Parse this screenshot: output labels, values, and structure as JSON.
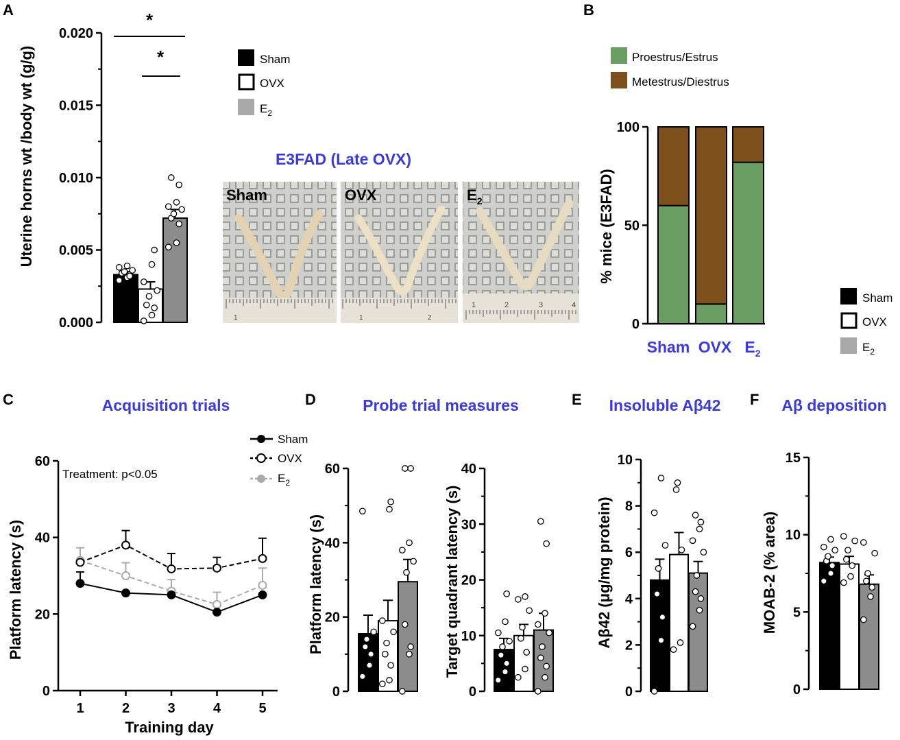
{
  "colors": {
    "sham": "#000000",
    "ovx": "#ffffff",
    "e2": "#8c8c8c",
    "e2_line": "#aaaaaa",
    "green": "#6a9d62",
    "brown": "#7d4f1a",
    "title_blue": "#3a3ae0"
  },
  "legend": {
    "sham": "Sham",
    "ovx": "OVX",
    "e2_base": "E",
    "e2_sub": "2"
  },
  "panel_a": {
    "letter": "A",
    "sig": [
      "*",
      "*"
    ],
    "photo_title": "E3FAD (Late OVX)",
    "photo_labels": [
      "Sham",
      "OVX",
      "E"
    ],
    "photo_label_e2_sub": "2",
    "ruler_numbers": [
      [
        "1"
      ],
      [
        "1",
        "2"
      ],
      [
        "1",
        "2",
        "3",
        "4"
      ]
    ]
  },
  "panel_b": {
    "letter": "B",
    "legend": [
      "Proestrus/Estrus",
      "Metestrus/Diestrus"
    ],
    "xcat": [
      "Sham",
      "OVX",
      "E"
    ],
    "xcat_e2_sub": "2"
  },
  "panel_c": {
    "letter": "C",
    "title": "Acquisition trials",
    "annotation": "Treatment: p<0.05"
  },
  "panel_d": {
    "letter": "D",
    "title": "Probe trial measures"
  },
  "panel_e": {
    "letter": "E",
    "title": "Insoluble Aβ42"
  },
  "panel_f": {
    "letter": "F",
    "title": "Aβ deposition"
  },
  "chart_data": [
    {
      "id": "A",
      "type": "bar",
      "title": "",
      "ylabel": "Uterine horns wt /body wt (g/g)",
      "ylim": [
        0,
        0.02
      ],
      "yticks": [
        0.0,
        0.005,
        0.01,
        0.015,
        0.02
      ],
      "ytick_labels": [
        "0.000",
        "0.005",
        "0.010",
        "0.015",
        "0.020"
      ],
      "categories": [
        "Sham",
        "OVX",
        "E2"
      ],
      "values": [
        0.0033,
        0.0023,
        0.0072
      ],
      "sem": [
        0.0002,
        0.0005,
        0.0006
      ],
      "points": [
        [
          0.0029,
          0.0031,
          0.0033,
          0.0034,
          0.0035,
          0.0036,
          0.0038,
          0.0039,
          0.0032
        ],
        [
          0.0001,
          0.0005,
          0.001,
          0.0012,
          0.0018,
          0.0022,
          0.0028,
          0.004,
          0.005
        ],
        [
          0.0052,
          0.0055,
          0.0068,
          0.0072,
          0.0075,
          0.0078,
          0.008,
          0.0083,
          0.0095,
          0.01
        ]
      ]
    },
    {
      "id": "B",
      "type": "bar",
      "stacked": true,
      "ylabel": "% mice (E3FAD)",
      "ylim": [
        0,
        100
      ],
      "yticks": [
        0,
        50,
        100
      ],
      "categories": [
        "Sham",
        "OVX",
        "E2"
      ],
      "series": [
        {
          "name": "Proestrus/Estrus",
          "values": [
            60,
            10,
            82
          ]
        },
        {
          "name": "Metestrus/Diestrus",
          "values": [
            40,
            90,
            18
          ]
        }
      ]
    },
    {
      "id": "C",
      "type": "line",
      "title": "Acquisition trials",
      "xlabel": "Training day",
      "ylabel": "Platform latency (s)",
      "x": [
        1,
        2,
        3,
        4,
        5
      ],
      "ylim": [
        0,
        60
      ],
      "yticks": [
        0,
        20,
        40,
        60
      ],
      "series": [
        {
          "name": "Sham",
          "values": [
            28,
            25.5,
            25,
            20.5,
            25
          ],
          "sem": [
            3,
            0,
            0,
            0,
            0
          ]
        },
        {
          "name": "OVX",
          "values": [
            33.5,
            38,
            31.8,
            32,
            34.5
          ],
          "sem": [
            0,
            3.8,
            4,
            2.8,
            5.3
          ]
        },
        {
          "name": "E2",
          "values": [
            34,
            30,
            26,
            22.5,
            27.5
          ],
          "sem": [
            3.3,
            3.4,
            3,
            3.2,
            4.5
          ]
        }
      ]
    },
    {
      "id": "D1",
      "type": "bar",
      "title": "Probe trial measures",
      "ylabel": "Platform latency (s)",
      "ylim": [
        0,
        60
      ],
      "yticks": [
        0,
        20,
        40,
        60
      ],
      "categories": [
        "Sham",
        "OVX",
        "E2"
      ],
      "values": [
        15.5,
        19,
        29.5
      ],
      "sem": [
        5,
        5.5,
        6
      ],
      "points": [
        [
          4,
          7,
          10,
          12,
          14,
          16,
          48.5
        ],
        [
          2,
          3,
          7,
          10,
          13,
          16,
          19,
          49,
          51
        ],
        [
          0,
          10,
          12,
          18,
          32,
          35,
          38,
          40,
          60,
          60
        ]
      ]
    },
    {
      "id": "D2",
      "type": "bar",
      "ylabel": "Target quadrant  latency (s)",
      "ylim": [
        0,
        40
      ],
      "yticks": [
        0,
        10,
        20,
        30,
        40
      ],
      "categories": [
        "Sham",
        "OVX",
        "E2"
      ],
      "values": [
        7.5,
        10,
        11
      ],
      "sem": [
        2,
        2,
        3
      ],
      "points": [
        [
          2,
          3.5,
          5,
          6.5,
          8,
          9,
          10.5,
          12.5,
          17.5
        ],
        [
          2.5,
          4,
          7,
          9.5,
          11.5,
          14.5,
          16.5,
          17
        ],
        [
          0,
          2.5,
          4.5,
          6,
          8,
          10.5,
          12,
          14,
          26.5,
          30.5
        ]
      ]
    },
    {
      "id": "E",
      "type": "bar",
      "title": "Insoluble Aβ42",
      "ylabel": "Aβ42 (μg/mg protein)",
      "ylim": [
        0,
        10
      ],
      "yticks": [
        0,
        2,
        4,
        6,
        8,
        10
      ],
      "categories": [
        "Sham",
        "OVX",
        "E2"
      ],
      "values": [
        4.8,
        5.9,
        5.1
      ],
      "sem": [
        0.9,
        0.95,
        0.5
      ],
      "points": [
        [
          0,
          2.2,
          3.2,
          4.2,
          5.3,
          6.3,
          7.7,
          9.2
        ],
        [
          1.8,
          2.1,
          6.1,
          8.7,
          9.0
        ],
        [
          2.8,
          3.5,
          4.0,
          4.3,
          5.0,
          6.0,
          6.5,
          7.0,
          7.3,
          7.6
        ]
      ]
    },
    {
      "id": "F",
      "type": "bar",
      "title": "Aβ deposition",
      "ylabel": "MOAB-2 (% area)",
      "ylim": [
        0,
        15
      ],
      "yticks": [
        0,
        5,
        10,
        15
      ],
      "categories": [
        "Sham",
        "OVX",
        "E2"
      ],
      "values": [
        8.2,
        8.1,
        6.8
      ],
      "sem": [
        0.35,
        0.5,
        0.6
      ],
      "points": [
        [
          7.0,
          7.5,
          8.0,
          8.3,
          8.6,
          9.0,
          9.2,
          9.7
        ],
        [
          6.9,
          7.3,
          8.0,
          8.4,
          9.0,
          9.6,
          9.9
        ],
        [
          4.5,
          6.0,
          6.6,
          7.0,
          7.5,
          8.8,
          9.5
        ]
      ]
    }
  ]
}
